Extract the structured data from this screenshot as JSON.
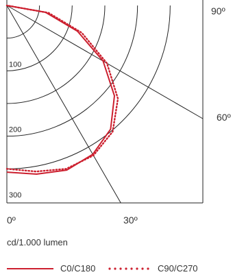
{
  "chart_data": {
    "type": "polar",
    "radial_ticks": [
      100,
      200,
      300
    ],
    "rmax": 300,
    "angle_ticks": [
      "0º",
      "30º",
      "60º",
      "90º"
    ],
    "unit_label": "cd/1.000 lumen",
    "series": [
      {
        "name": "C0/C180",
        "color": "#cc1f2e",
        "style": "solid",
        "points": [
          [
            0,
            255
          ],
          [
            10,
            262
          ],
          [
            20,
            268
          ],
          [
            30,
            263
          ],
          [
            40,
            247
          ],
          [
            50,
            215
          ],
          [
            60,
            170
          ],
          [
            70,
            115
          ],
          [
            80,
            60
          ],
          [
            90,
            0
          ]
        ]
      },
      {
        "name": "C90/C270",
        "color": "#cc1f2e",
        "style": "dotted",
        "points": [
          [
            0,
            250
          ],
          [
            10,
            258
          ],
          [
            20,
            266
          ],
          [
            30,
            265
          ],
          [
            40,
            252
          ],
          [
            50,
            222
          ],
          [
            60,
            177
          ],
          [
            70,
            122
          ],
          [
            80,
            65
          ],
          [
            90,
            0
          ]
        ]
      }
    ]
  }
}
